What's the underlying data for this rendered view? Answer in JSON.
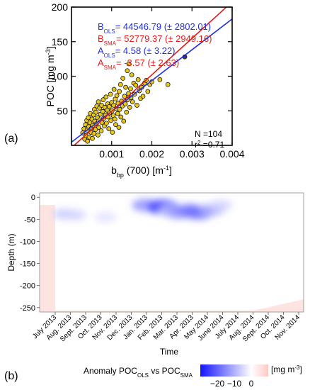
{
  "chart_data": [
    {
      "type": "scatter",
      "panel_label": "(a)",
      "xlabel": "b",
      "xlabel_sub": "bp",
      "xlabel_rest": " (700) [m",
      "xlabel_sup": "-1",
      "xlabel_end": "]",
      "ylabel": "POC [mg m",
      "ylabel_sup": "-3",
      "ylabel_end": "]",
      "xlim": [
        0,
        0.004
      ],
      "ylim": [
        0,
        200
      ],
      "xticks": [
        0.001,
        0.002,
        0.003,
        0.004
      ],
      "xtick_labels": [
        "0.001",
        "0.002",
        "0.003",
        "0.004"
      ],
      "yticks": [
        50,
        100,
        150,
        200
      ],
      "ytick_labels": [
        "50",
        "100",
        "150",
        "200"
      ],
      "lines": [
        {
          "name": "OLS",
          "slope": 44546.79,
          "intercept": 4.58,
          "color": "#1f2ee6"
        },
        {
          "name": "SMA",
          "slope": 52779.37,
          "intercept": -3.57,
          "color": "#e01b1b"
        }
      ],
      "annotations": [
        {
          "pre": "B",
          "sub": "OLS",
          "post": "= 44546.79 (± 2802.01)",
          "color": "#1f2ee6"
        },
        {
          "pre": "B",
          "sub": "SMA",
          "post": "= 52779.37 (± 2949.16)",
          "color": "#e01b1b"
        },
        {
          "pre": "A",
          "sub": "OLS",
          "post": "= 4.58 (± 3.22)",
          "color": "#1f2ee6"
        },
        {
          "pre": "A",
          "sub": "SMA",
          "post": "= -3.57 (± 2.63)",
          "color": "#e01b1b"
        }
      ],
      "stats": {
        "n_text": "N =104",
        "r2_pre": "r",
        "r2_sup": "2",
        "r2_post": " =0.71"
      },
      "point_color": "#e8c51a",
      "points": [
        [
          0.00028,
          18
        ],
        [
          0.00031,
          24
        ],
        [
          0.00033,
          9
        ],
        [
          0.00035,
          30
        ],
        [
          0.00036,
          14
        ],
        [
          0.00038,
          36
        ],
        [
          0.00039,
          22
        ],
        [
          0.0004,
          6
        ],
        [
          0.00042,
          40
        ],
        [
          0.00043,
          27
        ],
        [
          0.00044,
          12
        ],
        [
          0.00046,
          33
        ],
        [
          0.00047,
          46
        ],
        [
          0.00048,
          19
        ],
        [
          0.0005,
          25
        ],
        [
          0.00051,
          38
        ],
        [
          0.00052,
          10
        ],
        [
          0.00053,
          29
        ],
        [
          0.00055,
          44
        ],
        [
          0.00056,
          17
        ],
        [
          0.00057,
          52
        ],
        [
          0.00058,
          35
        ],
        [
          0.0006,
          23
        ],
        [
          0.00061,
          48
        ],
        [
          0.00062,
          31
        ],
        [
          0.00063,
          57
        ],
        [
          0.00065,
          40
        ],
        [
          0.00066,
          15
        ],
        [
          0.00067,
          63
        ],
        [
          0.00068,
          26
        ],
        [
          0.0007,
          54
        ],
        [
          0.00071,
          37
        ],
        [
          0.00072,
          45
        ],
        [
          0.00074,
          21
        ],
        [
          0.00075,
          58
        ],
        [
          0.00076,
          33
        ],
        [
          0.00078,
          49
        ],
        [
          0.00079,
          66
        ],
        [
          0.0008,
          39
        ],
        [
          0.00082,
          28
        ],
        [
          0.00083,
          55
        ],
        [
          0.00085,
          44
        ],
        [
          0.00086,
          70
        ],
        [
          0.00087,
          32
        ],
        [
          0.00089,
          51
        ],
        [
          0.0009,
          60
        ],
        [
          0.00091,
          41
        ],
        [
          0.00093,
          24
        ],
        [
          0.00094,
          56
        ],
        [
          0.00095,
          47
        ],
        [
          0.00097,
          74
        ],
        [
          0.00098,
          36
        ],
        [
          0.001,
          62
        ],
        [
          0.00101,
          50
        ],
        [
          0.00102,
          19
        ],
        [
          0.00104,
          43
        ],
        [
          0.00105,
          58
        ],
        [
          0.00106,
          81
        ],
        [
          0.00108,
          38
        ],
        [
          0.00109,
          67
        ],
        [
          0.0011,
          30
        ],
        [
          0.00112,
          53
        ],
        [
          0.00113,
          72
        ],
        [
          0.00115,
          46
        ],
        [
          0.00116,
          61
        ],
        [
          0.00118,
          26
        ],
        [
          0.00119,
          78
        ],
        [
          0.0012,
          52
        ],
        [
          0.00122,
          88
        ],
        [
          0.00123,
          41
        ],
        [
          0.00125,
          64
        ],
        [
          0.00127,
          57
        ],
        [
          0.00128,
          97
        ],
        [
          0.0013,
          35
        ],
        [
          0.00132,
          71
        ],
        [
          0.00134,
          60
        ],
        [
          0.00135,
          84
        ],
        [
          0.00137,
          48
        ],
        [
          0.00139,
          108
        ],
        [
          0.0014,
          66
        ],
        [
          0.00142,
          75
        ],
        [
          0.00143,
          118
        ],
        [
          0.00145,
          55
        ],
        [
          0.00147,
          82
        ],
        [
          0.00148,
          69
        ],
        [
          0.0015,
          102
        ],
        [
          0.00152,
          63
        ],
        [
          0.00155,
          90
        ],
        [
          0.00157,
          74
        ],
        [
          0.0016,
          87
        ],
        [
          0.00163,
          58
        ],
        [
          0.00166,
          95
        ],
        [
          0.00169,
          79
        ],
        [
          0.00172,
          68
        ],
        [
          0.00175,
          84
        ],
        [
          0.00178,
          71
        ],
        [
          0.00182,
          90
        ],
        [
          0.00186,
          94
        ],
        [
          0.0019,
          78
        ],
        [
          0.00195,
          88
        ],
        [
          0.002,
          92
        ],
        [
          0.0022,
          95
        ],
        [
          0.0024,
          88
        ],
        [
          0.00282,
          128
        ]
      ]
    },
    {
      "type": "heatmap",
      "panel_label": "(b)",
      "xlabel": "Time",
      "ylabel": "Depth (m)",
      "ylim": [
        -260,
        10
      ],
      "yticks": [
        -250,
        -200,
        -150,
        -100,
        -50,
        0
      ],
      "ytick_labels": [
        "-250",
        "-200",
        "-150",
        "-100",
        "-50",
        "0"
      ],
      "xtick_labels": [
        "July 2013",
        "Aug. 2013",
        "Sept. 2013",
        "Oct. 2013",
        "Nov. 2013",
        "Dec. 2013",
        "Jan. 2013",
        "Feb. 2013",
        "Mar. 2013",
        "Apr. 2013",
        "May 2014",
        "June 2014",
        "July 2014",
        "Aug. 2014",
        "Sept. 2014",
        "Oct. 2014",
        "Nov. 2014"
      ],
      "colorbar": {
        "title_pre": "Anomaly POC",
        "title_sub1": "OLS",
        "title_mid": " vs POC",
        "title_sub2": "SMA",
        "ticks": [
          -20,
          -10,
          0
        ],
        "tick_labels": [
          "−20",
          "−10",
          "0"
        ],
        "range": [
          -30,
          10
        ],
        "unit_pre": "[mg m",
        "unit_sup": "-3",
        "unit_end": "]",
        "low_color": "#1414ff",
        "mid_color": "#ffffff",
        "high_color": "#ffc9c4"
      },
      "field_color": "#fde4e1",
      "anomalies": [
        {
          "date": 5.95,
          "depth": -18,
          "value": -16
        },
        {
          "date": 6.35,
          "depth": -20,
          "value": -12
        },
        {
          "date": 7.05,
          "depth": -22,
          "value": -26
        },
        {
          "date": 7.55,
          "depth": -30,
          "value": -9
        },
        {
          "date": 8.1,
          "depth": -35,
          "value": -14
        },
        {
          "date": 8.8,
          "depth": -30,
          "value": -18
        },
        {
          "date": 9.4,
          "depth": -35,
          "value": -20
        },
        {
          "date": 10.3,
          "depth": -28,
          "value": -12
        },
        {
          "date": 10.9,
          "depth": -18,
          "value": -6
        },
        {
          "date": 0.6,
          "depth": -38,
          "value": -7
        },
        {
          "date": 1.3,
          "depth": -40,
          "value": -6
        },
        {
          "date": 3.3,
          "depth": -45,
          "value": -4
        }
      ]
    }
  ]
}
